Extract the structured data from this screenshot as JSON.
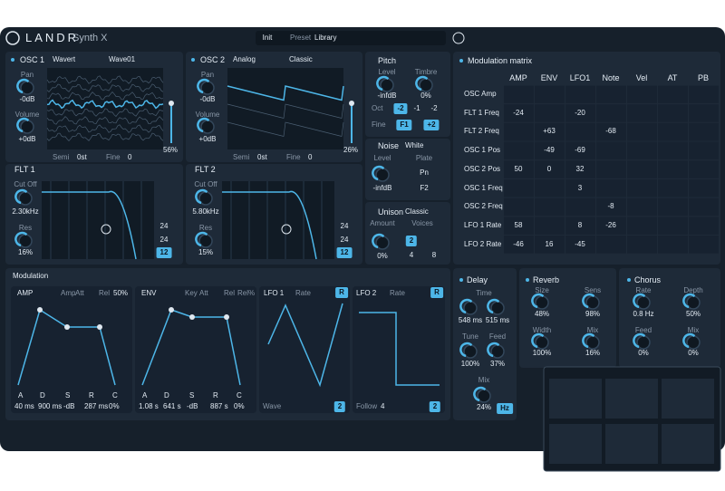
{
  "header": {
    "brand": "LANDR",
    "product": "Synth X",
    "preset_name": "Init",
    "preset_tab": "Preset",
    "library_tab": "Library"
  },
  "osc1": [
    "OSC 1",
    "Wavert",
    "Wave01",
    "Pan",
    "-0dB",
    "Volume",
    "+0dB",
    "56%",
    "Semi",
    "0st",
    "Fine",
    "0"
  ],
  "osc2": [
    "OSC 2",
    "Analog",
    "Classic",
    "Pan",
    "-0dB",
    "Volume",
    "+0dB",
    "26%",
    "Semi",
    "0st",
    "Fine",
    "0"
  ],
  "flt1": [
    "FLT 1",
    "Cut Off",
    "2.30kHz",
    "Res",
    "16%",
    "24",
    "24",
    "12"
  ],
  "flt2": [
    "FLT 2",
    "Cut Off",
    "5.80kHz",
    "Res",
    "15%",
    "24",
    "24",
    "12"
  ],
  "pitch": [
    "Pitch",
    "Level",
    "Timbre",
    "-infdB",
    "0%",
    "Oct",
    "-2",
    "-1",
    "-2",
    "Fine",
    "F1",
    "+2"
  ],
  "noise": [
    "Noise",
    "White",
    "Level",
    "Plate",
    "-infdB",
    "Pn",
    "F2"
  ],
  "unison": [
    "Unison",
    "Classic",
    "Amount",
    "Voices",
    "0%",
    "2",
    "4",
    "8"
  ],
  "matrix": {
    "title": "Modulation matrix",
    "columns": [
      "AMP",
      "ENV",
      "LFO1",
      "Note",
      "Vel",
      "AT",
      "PB"
    ],
    "rows": [
      {
        "label": "OSC Amp",
        "cells": [
          null,
          null,
          null,
          null,
          null,
          null,
          null
        ]
      },
      {
        "label": "FLT 1 Freq",
        "cells": [
          "-24",
          null,
          "-20",
          null,
          null,
          null,
          null
        ]
      },
      {
        "label": "FLT 2 Freq",
        "cells": [
          null,
          "+63",
          null,
          "-68",
          null,
          null,
          null
        ]
      },
      {
        "label": "OSC 1 Pos",
        "cells": [
          null,
          "-49",
          "-69",
          null,
          null,
          null,
          null
        ]
      },
      {
        "label": "OSC 2 Pos",
        "cells": [
          "50",
          "0",
          "32",
          null,
          null,
          null,
          null
        ]
      },
      {
        "label": "OSC 1 Freq",
        "cells": [
          null,
          null,
          "3",
          null,
          null,
          null,
          null
        ]
      },
      {
        "label": "OSC 2 Freq",
        "cells": [
          null,
          null,
          null,
          "-8",
          null,
          null,
          null
        ]
      },
      {
        "label": "LFO 1 Rate",
        "cells": [
          "58",
          null,
          "8",
          "-26",
          null,
          null,
          null
        ]
      },
      {
        "label": "LFO 2 Rate",
        "cells": [
          "-46",
          "16",
          "-45",
          null,
          null,
          null,
          null
        ]
      }
    ]
  },
  "modulation": {
    "title": "Modulation",
    "amp": [
      "AMP",
      "Amp",
      "Att",
      "Rel",
      "50%",
      "A",
      "D",
      "S",
      "R",
      "C",
      "40 ms",
      "900 ms",
      "-dB",
      "287 ms",
      "0%"
    ],
    "env": [
      "ENV",
      "Key",
      "Att",
      "Rel",
      "Rel%",
      "A",
      "D",
      "S",
      "R",
      "C",
      "1.08 s",
      "641 s",
      "-dB",
      "887 s",
      "0%"
    ],
    "lfo1": [
      "LFO 1",
      "Rate",
      "R",
      "Wave",
      "2"
    ],
    "lfo2": [
      "LFO 2",
      "Rate",
      "R",
      "Follow",
      "4",
      "2"
    ]
  },
  "delay": [
    "Delay",
    "Time",
    "548 ms",
    "515 ms",
    "Tune",
    "Feed",
    "100%",
    "37%",
    "Mix",
    "24%",
    "Hz"
  ],
  "reverb": [
    "Reverb",
    "Size",
    "Sens",
    "48%",
    "98%",
    "Width",
    "Mix",
    "100%",
    "16%"
  ],
  "chorus": [
    "Chorus",
    "Rate",
    "Depth",
    "0.8 Hz",
    "50%",
    "Feed",
    "Mix",
    "0%",
    "0%"
  ]
}
